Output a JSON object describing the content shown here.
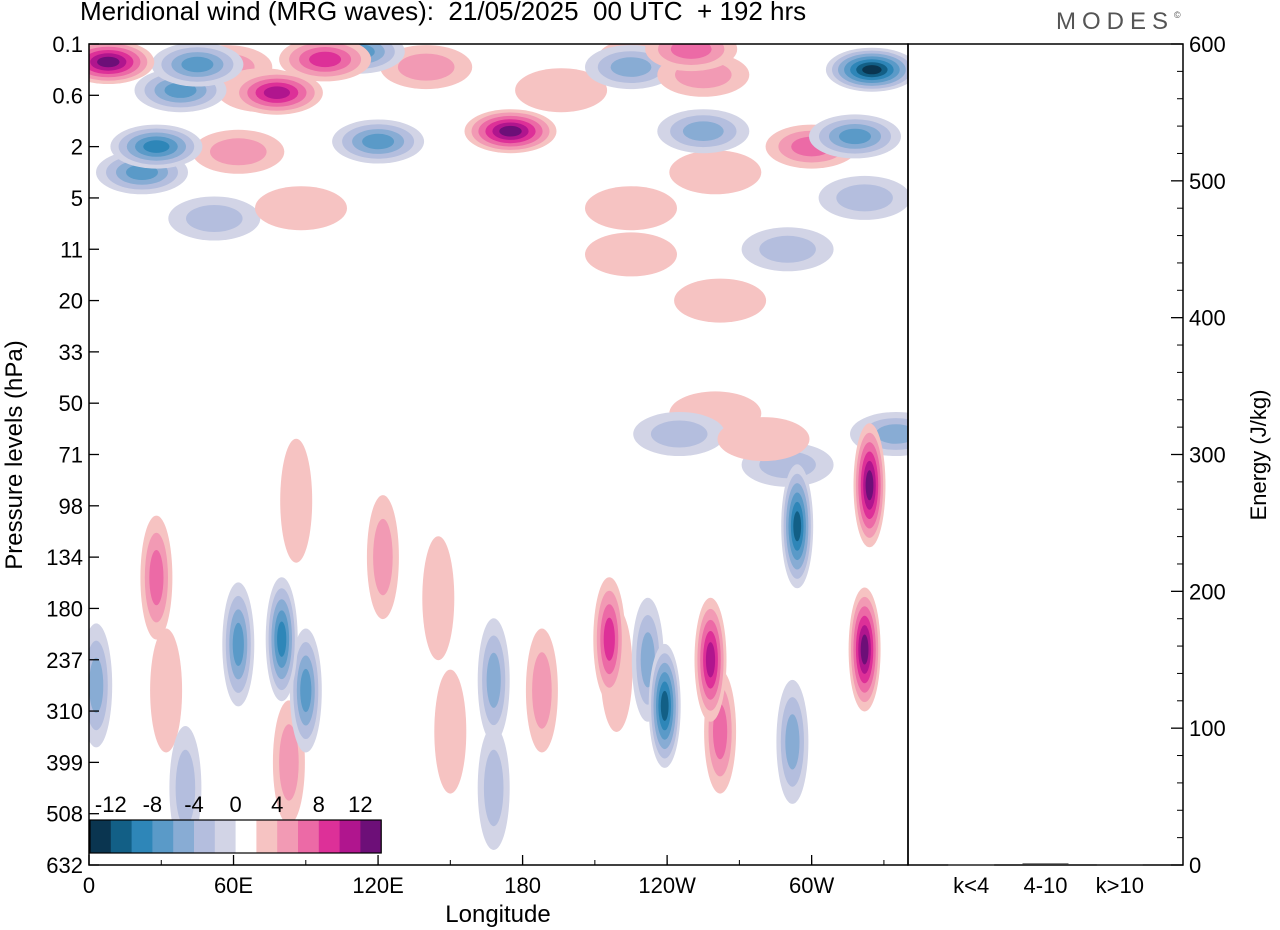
{
  "header": {
    "title": "Meridional wind (MRG waves):  21/05/2025  00 UTC  + 192 hrs",
    "logo_text": "MODES",
    "logo_mark": "©"
  },
  "chart_data": [
    {
      "type": "heatmap",
      "title": "Meridional wind (MRG waves):  21/05/2025  00 UTC  + 192 hrs",
      "xlabel": "Longitude",
      "ylabel": "Pressure levels (hPa)",
      "x_ticks": [
        "0",
        "60E",
        "120E",
        "180",
        "120W",
        "60W"
      ],
      "x_tick_values": [
        0,
        60,
        120,
        180,
        240,
        300
      ],
      "xlim": [
        0,
        340
      ],
      "y_ticks": [
        "0.1",
        "0.6",
        "2",
        "5",
        "11",
        "20",
        "33",
        "50",
        "71",
        "98",
        "134",
        "180",
        "237",
        "310",
        "399",
        "508",
        "632"
      ],
      "y_scale": "model levels (non-linear)",
      "colorbar": {
        "tick_labels": [
          "-12",
          "-8",
          "-4",
          "0",
          "4",
          "8",
          "12"
        ],
        "levels": [
          -14,
          -12,
          -10,
          -8,
          -6,
          -4,
          -2,
          2,
          4,
          6,
          8,
          10,
          12,
          14
        ],
        "colors": [
          "#0a3550",
          "#125f86",
          "#2e86b8",
          "#5a9ac8",
          "#88acd4",
          "#b4bede",
          "#d2d4e6",
          "#ffffff",
          "#f6c3c2",
          "#f29ab4",
          "#ec6aa6",
          "#dd3098",
          "#b0158e",
          "#6d0f78"
        ],
        "placement": "bottom-left"
      },
      "features": [
        {
          "lon": 8,
          "lev": 0.35,
          "v": 14
        },
        {
          "lon": 22,
          "lev": 2.5,
          "v": -6
        },
        {
          "lon": 28,
          "lev": 2.0,
          "v": -8
        },
        {
          "lon": 38,
          "lev": 0.9,
          "v": -6
        },
        {
          "lon": 45,
          "lev": 0.4,
          "v": -6
        },
        {
          "lon": 57,
          "lev": 0.45,
          "v": 4
        },
        {
          "lon": 72,
          "lev": 0.9,
          "v": 4
        },
        {
          "lon": 78,
          "lev": 0.95,
          "v": 10
        },
        {
          "lon": 62,
          "lev": 2.1,
          "v": 4
        },
        {
          "lon": 98,
          "lev": 0.3,
          "v": 8
        },
        {
          "lon": 112,
          "lev": 0.15,
          "v": -6
        },
        {
          "lon": 140,
          "lev": 0.45,
          "v": 4
        },
        {
          "lon": 120,
          "lev": 1.9,
          "v": -6
        },
        {
          "lon": 175,
          "lev": 1.7,
          "v": 12
        },
        {
          "lon": 196,
          "lev": 0.9,
          "v": 2
        },
        {
          "lon": 230,
          "lev": 0.3,
          "v": 4
        },
        {
          "lon": 225,
          "lev": 0.45,
          "v": -4
        },
        {
          "lon": 250,
          "lev": 0.1,
          "v": 6
        },
        {
          "lon": 255,
          "lev": 0.6,
          "v": 4
        },
        {
          "lon": 255,
          "lev": 1.7,
          "v": -4
        },
        {
          "lon": 260,
          "lev": 2.5,
          "v": 2
        },
        {
          "lon": 300,
          "lev": 2.0,
          "v": 6
        },
        {
          "lon": 325,
          "lev": 0.5,
          "v": -14
        },
        {
          "lon": 318,
          "lev": 1.8,
          "v": -6
        },
        {
          "lon": 52,
          "lev": 3.4,
          "v": -2
        },
        {
          "lon": 88,
          "lev": 3.2,
          "v": 2
        },
        {
          "lon": 225,
          "lev": 3.2,
          "v": 2
        },
        {
          "lon": 322,
          "lev": 3.0,
          "v": -2
        },
        {
          "lon": 290,
          "lev": 4.0,
          "v": -2
        },
        {
          "lon": 225,
          "lev": 4.1,
          "v": 2
        },
        {
          "lon": 262,
          "lev": 5.0,
          "v": 2
        },
        {
          "lon": 260,
          "lev": 7.2,
          "v": 2
        },
        {
          "lon": 245,
          "lev": 7.6,
          "v": -2
        },
        {
          "lon": 290,
          "lev": 8.2,
          "v": -2
        },
        {
          "lon": 280,
          "lev": 7.7,
          "v": 2
        },
        {
          "lon": 86,
          "lev": 8.9,
          "v": 2
        },
        {
          "lon": 28,
          "lev": 10.4,
          "v": 6
        },
        {
          "lon": 32,
          "lev": 12.6,
          "v": 2
        },
        {
          "lon": 62,
          "lev": 11.7,
          "v": -6
        },
        {
          "lon": 80,
          "lev": 11.6,
          "v": -8
        },
        {
          "lon": 90,
          "lev": 12.6,
          "v": -6
        },
        {
          "lon": 122,
          "lev": 10.0,
          "v": 4
        },
        {
          "lon": 145,
          "lev": 10.8,
          "v": 2
        },
        {
          "lon": 168,
          "lev": 12.4,
          "v": -4
        },
        {
          "lon": 188,
          "lev": 12.6,
          "v": 4
        },
        {
          "lon": 216,
          "lev": 11.6,
          "v": 8
        },
        {
          "lon": 219,
          "lev": 12.2,
          "v": 2
        },
        {
          "lon": 232,
          "lev": 12.0,
          "v": -4
        },
        {
          "lon": 239,
          "lev": 12.9,
          "v": -10
        },
        {
          "lon": 258,
          "lev": 12.0,
          "v": 10
        },
        {
          "lon": 262,
          "lev": 13.4,
          "v": 6
        },
        {
          "lon": 294,
          "lev": 9.4,
          "v": -10
        },
        {
          "lon": 292,
          "lev": 13.6,
          "v": -4
        },
        {
          "lon": 324,
          "lev": 8.6,
          "v": 12
        },
        {
          "lon": 322,
          "lev": 11.8,
          "v": 12
        },
        {
          "lon": 335,
          "lev": 7.6,
          "v": -4
        },
        {
          "lon": 150,
          "lev": 13.4,
          "v": 2
        },
        {
          "lon": 168,
          "lev": 14.5,
          "v": -2
        },
        {
          "lon": 83,
          "lev": 14.0,
          "v": 4
        },
        {
          "lon": 40,
          "lev": 14.5,
          "v": -2
        },
        {
          "lon": 3,
          "lev": 12.5,
          "v": -4
        }
      ]
    },
    {
      "type": "bar",
      "ylabel": "Energy (J/kg)",
      "categories": [
        "k<4",
        "4-10",
        "k>10"
      ],
      "values": [
        0.4,
        1.2,
        0.2
      ],
      "ylim": [
        0,
        600
      ],
      "y_ticks": [
        0,
        100,
        200,
        300,
        400,
        500,
        600
      ]
    }
  ]
}
